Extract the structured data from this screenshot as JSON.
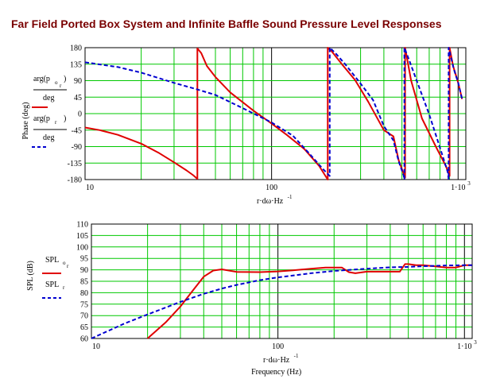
{
  "title": "Far Field Ported Box System and Infinite Baffle Sound Pressure Level Responses",
  "colors": {
    "title": "#7a0000",
    "grid": "#00c800",
    "series_solid": "#e00000",
    "series_dashed": "#0000d0"
  },
  "chart_data": [
    {
      "type": "line",
      "x_scale": "log",
      "xlim": [
        10,
        1100
      ],
      "ylim": [
        -180,
        180
      ],
      "y_ticks": [
        "180",
        "135",
        "90",
        "45",
        "0",
        "-45",
        "-90",
        "-135",
        "-180"
      ],
      "x_ticks": [
        "10",
        "100",
        "1·10"
      ],
      "x_tick_exponent": "3",
      "ylabel": "Phase (deg)",
      "xlabel": "r·dω·Hz",
      "xlabel_exponent": "-1",
      "grid": true,
      "legend": {
        "placement": "left",
        "entries": [
          {
            "line1": "arg(p",
            "sub1": "o",
            "sub2": "r",
            "line1_end": ")",
            "line2": "deg",
            "style": "solid",
            "color": "#e00000"
          },
          {
            "line1": "arg(p",
            "sub1": "r",
            "sub2": "",
            "line1_end": ")",
            "line2": "deg",
            "style": "dashed",
            "color": "#0000d0"
          }
        ]
      },
      "series": [
        {
          "style": "solid",
          "color": "#e00000",
          "x": [
            10,
            12,
            15,
            20,
            25,
            30,
            35,
            38,
            40,
            40,
            42,
            45,
            50,
            60,
            80,
            100,
            120,
            150,
            180,
            200,
            200,
            210,
            240,
            280,
            330,
            400,
            450,
            480,
            520,
            520,
            560,
            640,
            760,
            860,
            900,
            900,
            940,
            1000,
            1050
          ],
          "y": [
            -38,
            -45,
            -58,
            -82,
            -108,
            -133,
            -155,
            -168,
            -178,
            178,
            165,
            130,
            100,
            58,
            8,
            -27,
            -57,
            -97,
            -143,
            -180,
            180,
            170,
            133,
            92,
            32,
            -45,
            -62,
            -127,
            -175,
            180,
            90,
            -13,
            -90,
            -143,
            -170,
            180,
            130,
            85,
            40
          ]
        },
        {
          "style": "dashed",
          "color": "#0000d0",
          "x": [
            10,
            15,
            20,
            30,
            40,
            50,
            70,
            100,
            130,
            160,
            190,
            205,
            205,
            220,
            250,
            300,
            350,
            400,
            450,
            480,
            510,
            515,
            515,
            550,
            600,
            700,
            800,
            880,
            890,
            890,
            950,
            1000,
            1050
          ],
          "y": [
            140,
            127,
            112,
            84,
            66,
            51,
            15,
            -24,
            -60,
            -110,
            -153,
            -170,
            180,
            165,
            133,
            82,
            37,
            -34,
            -73,
            -130,
            -168,
            -180,
            180,
            142,
            90,
            -2,
            -93,
            -160,
            -180,
            180,
            120,
            85,
            40
          ]
        }
      ]
    },
    {
      "type": "line",
      "x_scale": "log",
      "xlim": [
        10,
        1100
      ],
      "ylim": [
        60,
        110
      ],
      "y_ticks": [
        "110",
        "105",
        "100",
        "95",
        "90",
        "85",
        "80",
        "75",
        "70",
        "65",
        "60"
      ],
      "x_ticks": [
        "10",
        "100",
        "1·10"
      ],
      "x_tick_exponent": "3",
      "ylabel": "SPL (dB)",
      "xlabel": "r·dω·Hz",
      "xlabel_exponent": "-1",
      "xlabel2": "Frequency (Hz)",
      "grid": true,
      "legend": {
        "placement": "left",
        "entries": [
          {
            "name": "SPL",
            "sub1": "o",
            "sub2": "r",
            "style": "solid",
            "color": "#e00000"
          },
          {
            "name": "SPL",
            "sub1": "r",
            "sub2": "",
            "style": "dashed",
            "color": "#0000d0"
          }
        ]
      },
      "series": [
        {
          "style": "solid",
          "color": "#e00000",
          "x": [
            20,
            25,
            30,
            35,
            40,
            45,
            50,
            60,
            80,
            100,
            120,
            150,
            180,
            220,
            240,
            260,
            300,
            400,
            450,
            480,
            500,
            550,
            600,
            700,
            800,
            900,
            1000,
            1100
          ],
          "y": [
            60,
            67,
            74,
            81,
            87,
            89.7,
            90.2,
            89.1,
            89,
            89.3,
            89.8,
            90.5,
            91,
            91,
            89,
            88.5,
            89.2,
            89.2,
            89.2,
            92.5,
            92.5,
            92,
            92,
            91.5,
            91,
            91,
            92,
            92
          ]
        },
        {
          "style": "dashed",
          "color": "#0000d0",
          "x": [
            10,
            15,
            20,
            30,
            40,
            50,
            60,
            80,
            100,
            150,
            200,
            300,
            400,
            500,
            600,
            800,
            1000,
            1100
          ],
          "y": [
            60,
            66.5,
            70.5,
            76,
            79.5,
            81.8,
            83.4,
            85.5,
            86.7,
            88.5,
            89.5,
            90.5,
            91.1,
            91.3,
            91.6,
            91.9,
            92,
            92
          ]
        }
      ]
    }
  ]
}
